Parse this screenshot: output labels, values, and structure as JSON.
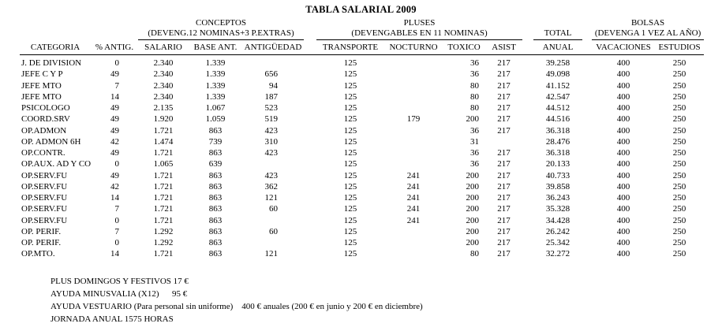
{
  "title": "TABLA SALARIAL 2009",
  "colors": {
    "text": "#000000",
    "background": "#ffffff",
    "rule": "#000000"
  },
  "table": {
    "group_headers": {
      "conceptos_line1": "CONCEPTOS",
      "conceptos_line2": "(DEVENG.12 NOMINAS+3 P.EXTRAS)",
      "pluses_line1": "PLUSES",
      "pluses_line2": "(DEVENGABLES EN 11 NOMINAS)",
      "total": "TOTAL",
      "bolsas_line1": "BOLSAS",
      "bolsas_line2": "(DEVENGA 1 VEZ AL AÑO)"
    },
    "columns": [
      "CATEGORIA",
      "% ANTIG.",
      "SALARIO",
      "BASE ANT.",
      "ANTIGÜEDAD",
      "TRANSPORTE",
      "NOCTURNO",
      "TOXICO",
      "ASIST",
      "ANUAL",
      "VACACIONES",
      "ESTUDIOS"
    ],
    "rows": [
      [
        "J. DE DIVISION",
        "0",
        "2.340",
        "1.339",
        "",
        "125",
        "",
        "36",
        "217",
        "39.258",
        "400",
        "250"
      ],
      [
        "JEFE C Y P",
        "49",
        "2.340",
        "1.339",
        "656",
        "125",
        "",
        "36",
        "217",
        "49.098",
        "400",
        "250"
      ],
      [
        "JEFE MTO",
        "7",
        "2.340",
        "1.339",
        "94",
        "125",
        "",
        "80",
        "217",
        "41.152",
        "400",
        "250"
      ],
      [
        "JEFE MTO",
        "14",
        "2.340",
        "1.339",
        "187",
        "125",
        "",
        "80",
        "217",
        "42.547",
        "400",
        "250"
      ],
      [
        "PSICOLOGO",
        "49",
        "2.135",
        "1.067",
        "523",
        "125",
        "",
        "80",
        "217",
        "44.512",
        "400",
        "250"
      ],
      [
        "COORD.SRV",
        "49",
        "1.920",
        "1.059",
        "519",
        "125",
        "179",
        "200",
        "217",
        "44.516",
        "400",
        "250"
      ],
      [
        "OP.ADMON",
        "49",
        "1.721",
        "863",
        "423",
        "125",
        "",
        "36",
        "217",
        "36.318",
        "400",
        "250"
      ],
      [
        "OP. ADMON 6H",
        "42",
        "1.474",
        "739",
        "310",
        "125",
        "",
        "31",
        "",
        "28.476",
        "400",
        "250"
      ],
      [
        "OP.CONTR.",
        "49",
        "1.721",
        "863",
        "423",
        "125",
        "",
        "36",
        "217",
        "36.318",
        "400",
        "250"
      ],
      [
        "OP.AUX. AD Y CO",
        "0",
        "1.065",
        "639",
        "",
        "125",
        "",
        "36",
        "217",
        "20.133",
        "400",
        "250"
      ],
      [
        "OP.SERV.FU",
        "49",
        "1.721",
        "863",
        "423",
        "125",
        "241",
        "200",
        "217",
        "40.733",
        "400",
        "250"
      ],
      [
        "OP.SERV.FU",
        "42",
        "1.721",
        "863",
        "362",
        "125",
        "241",
        "200",
        "217",
        "39.858",
        "400",
        "250"
      ],
      [
        "OP.SERV.FU",
        "14",
        "1.721",
        "863",
        "121",
        "125",
        "241",
        "200",
        "217",
        "36.243",
        "400",
        "250"
      ],
      [
        "OP.SERV.FU",
        "7",
        "1.721",
        "863",
        "60",
        "125",
        "241",
        "200",
        "217",
        "35.328",
        "400",
        "250"
      ],
      [
        "OP.SERV.FU",
        "0",
        "1.721",
        "863",
        "",
        "125",
        "241",
        "200",
        "217",
        "34.428",
        "400",
        "250"
      ],
      [
        "OP. PERIF.",
        "7",
        "1.292",
        "863",
        "60",
        "125",
        "",
        "200",
        "217",
        "26.242",
        "400",
        "250"
      ],
      [
        "OP. PERIF.",
        "0",
        "1.292",
        "863",
        "",
        "125",
        "",
        "200",
        "217",
        "25.342",
        "400",
        "250"
      ],
      [
        "OP.MTO.",
        "14",
        "1.721",
        "863",
        "121",
        "125",
        "",
        "80",
        "217",
        "32.272",
        "400",
        "250"
      ]
    ]
  },
  "footnotes": [
    "PLUS DOMINGOS Y FESTIVOS 17 €",
    "AYUDA MINUSVALIA (X12)      95 €",
    "AYUDA VESTUARIO (Para personal sin uniforme)    400 € anuales (200 € en junio y 200 € en diciembre)",
    "JORNADA ANUAL 1575 HORAS"
  ]
}
